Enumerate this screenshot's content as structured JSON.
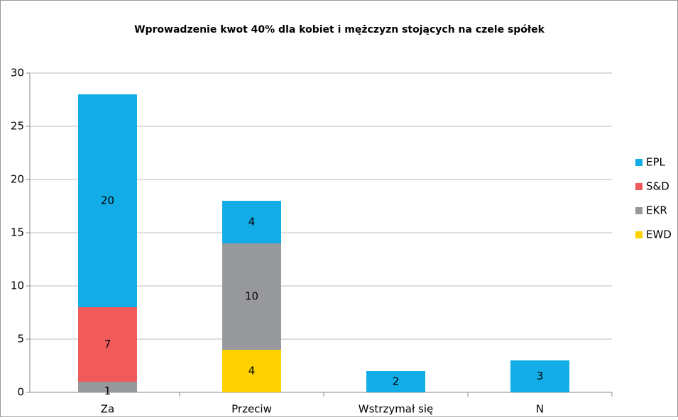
{
  "chart_data": {
    "type": "stacked-bar",
    "title": "Wprowadzenie kwot 40% dla kobiet i mężczyzn stojących na czele spółek",
    "categories": [
      "Za",
      "Przeciw",
      "Wstrzymał się",
      "N"
    ],
    "series": [
      {
        "name": "EPL",
        "color": "#12ace6",
        "values": [
          20,
          4,
          2,
          3
        ]
      },
      {
        "name": "S&D",
        "color": "#f05a5a",
        "values": [
          7,
          null,
          null,
          null
        ]
      },
      {
        "name": "EKR",
        "color": "#98999c",
        "values": [
          1,
          10,
          null,
          null
        ]
      },
      {
        "name": "EWD",
        "color": "#fdd200",
        "values": [
          null,
          4,
          null,
          null
        ]
      }
    ],
    "ylim": [
      0,
      30
    ],
    "yticks": [
      0,
      5,
      10,
      15,
      20,
      25,
      30
    ],
    "grid": true,
    "legend": "right"
  }
}
